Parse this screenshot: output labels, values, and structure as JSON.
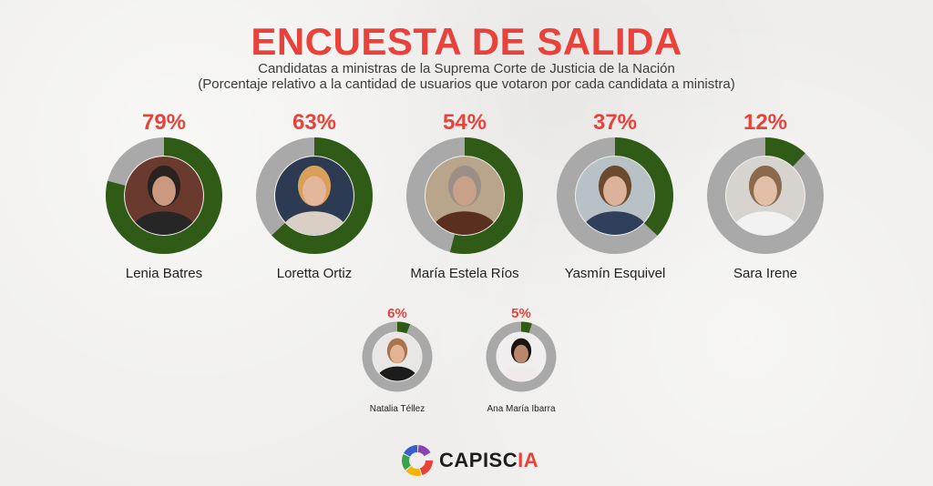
{
  "title": "ENCUESTA DE SALIDA",
  "subtitle_line1": "Candidatas a ministras de la Suprema Corte de Justicia de la Nación",
  "subtitle_line2": "(Porcentaje relativo a la cantidad de usuarios que votaron por cada candidata a ministra)",
  "brand": {
    "name_main": "CAPISC",
    "name_accent": "IA"
  },
  "colors": {
    "filled": "#2f5b17",
    "track": "#a9a9a9",
    "percent": "#e8423a",
    "title": "#e8423a"
  },
  "chart_data": {
    "type": "donut",
    "unit": "%",
    "series": [
      {
        "name": "Lenia Batres",
        "value": 79,
        "label": "79%"
      },
      {
        "name": "Loretta Ortiz",
        "value": 63,
        "label": "63%"
      },
      {
        "name": "María Estela Ríos",
        "value": 54,
        "label": "54%"
      },
      {
        "name": "Yasmín Esquivel",
        "value": 37,
        "label": "37%"
      },
      {
        "name": "Sara Irene",
        "value": 12,
        "label": "12%"
      },
      {
        "name": "Natalia Téllez",
        "value": 6,
        "label": "6%"
      },
      {
        "name": "Ana María Ibarra",
        "value": 5,
        "label": "5%"
      }
    ]
  }
}
